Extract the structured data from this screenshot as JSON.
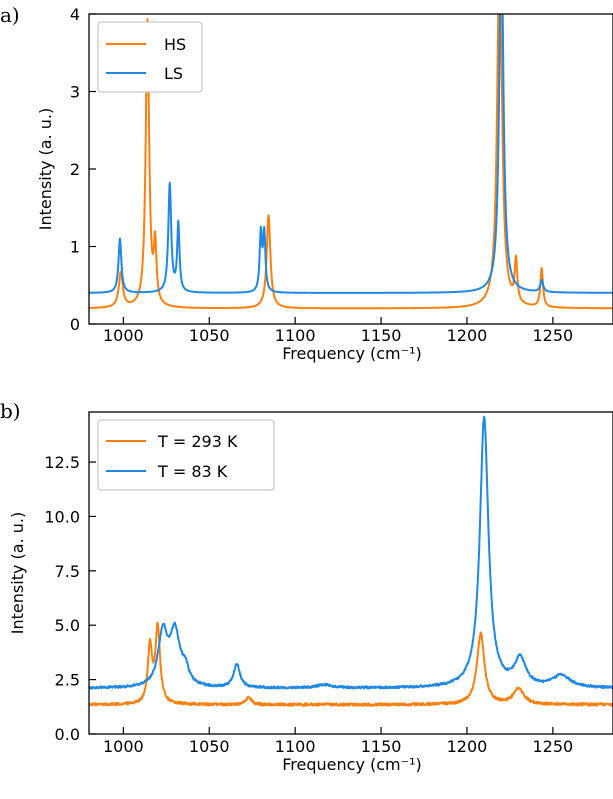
{
  "chart_data": [
    {
      "type": "line",
      "panel_label": "a)",
      "xlabel": "Frequency (cm⁻¹)",
      "ylabel": "Intensity (a. u.)",
      "xlim": [
        980,
        1285
      ],
      "ylim": [
        0,
        4
      ],
      "xticks": [
        1000,
        1050,
        1100,
        1150,
        1200,
        1250
      ],
      "yticks": [
        0,
        1,
        2,
        3,
        4
      ],
      "xtick_labels": [
        "1000",
        "1050",
        "1100",
        "1150",
        "1200",
        "1250"
      ],
      "ytick_labels": [
        "0",
        "1",
        "2",
        "3",
        "4"
      ],
      "grid": false,
      "legend_position": "upper-left",
      "series": [
        {
          "name": "HS",
          "color": "#ff7f0e",
          "baseline": 0.2,
          "noise": 0,
          "peaks": [
            {
              "x": 998.5,
              "h": 0.45,
              "w": 1.4
            },
            {
              "x": 1014,
              "h": 3.7,
              "w": 1.2
            },
            {
              "x": 1018.5,
              "h": 0.75,
              "w": 0.9
            },
            {
              "x": 1084.5,
              "h": 1.2,
              "w": 1.3
            },
            {
              "x": 1219,
              "h": 4.8,
              "w": 1.6
            },
            {
              "x": 1228.5,
              "h": 0.55,
              "w": 0.9
            },
            {
              "x": 1243.5,
              "h": 0.5,
              "w": 0.9
            }
          ]
        },
        {
          "name": "LS",
          "color": "#1f88e5",
          "baseline": 0.4,
          "noise": 0,
          "peaks": [
            {
              "x": 998,
              "h": 0.7,
              "w": 1.0
            },
            {
              "x": 1027,
              "h": 1.4,
              "w": 1.0
            },
            {
              "x": 1032,
              "h": 0.88,
              "w": 0.8
            },
            {
              "x": 1080,
              "h": 0.75,
              "w": 0.8
            },
            {
              "x": 1082,
              "h": 0.75,
              "w": 0.8
            },
            {
              "x": 1220,
              "h": 4.8,
              "w": 1.4
            },
            {
              "x": 1243.5,
              "h": 0.15,
              "w": 1.0
            }
          ]
        }
      ]
    },
    {
      "type": "line",
      "panel_label": "b)",
      "xlabel": "Frequency (cm⁻¹)",
      "ylabel": "Intensity (a. u.)",
      "xlim": [
        980,
        1285
      ],
      "ylim": [
        0,
        14.8
      ],
      "xticks": [
        1000,
        1050,
        1100,
        1150,
        1200,
        1250
      ],
      "yticks": [
        0,
        2.5,
        5,
        7.5,
        10,
        12.5
      ],
      "xtick_labels": [
        "1000",
        "1050",
        "1100",
        "1150",
        "1200",
        "1250"
      ],
      "ytick_labels": [
        "0.0",
        "2.5",
        "5.0",
        "7.5",
        "10.0",
        "12.5"
      ],
      "grid": false,
      "legend_position": "upper-left",
      "series": [
        {
          "name": "T = 293 K",
          "color": "#ff7f0e",
          "baseline": 1.35,
          "noise": 0.06,
          "peaks": [
            {
              "x": 1015.5,
              "h": 2.6,
              "w": 1.5
            },
            {
              "x": 1020,
              "h": 3.5,
              "w": 1.6
            },
            {
              "x": 1073,
              "h": 0.35,
              "w": 1.8
            },
            {
              "x": 1208,
              "h": 3.25,
              "w": 2.6
            },
            {
              "x": 1230,
              "h": 0.75,
              "w": 3.5
            }
          ]
        },
        {
          "name": "T = 83 K",
          "color": "#1f88e5",
          "baseline": 2.1,
          "noise": 0.05,
          "peaks": [
            {
              "x": 1023,
              "h": 2.45,
              "w": 3.2
            },
            {
              "x": 1030,
              "h": 2.45,
              "w": 3.4
            },
            {
              "x": 1036,
              "h": 0.7,
              "w": 2.5
            },
            {
              "x": 1066,
              "h": 1.1,
              "w": 2.2
            },
            {
              "x": 1117,
              "h": 0.15,
              "w": 5
            },
            {
              "x": 1210,
              "h": 12.4,
              "w": 3.0
            },
            {
              "x": 1231,
              "h": 1.25,
              "w": 4
            },
            {
              "x": 1255,
              "h": 0.55,
              "w": 6
            }
          ]
        }
      ]
    }
  ]
}
